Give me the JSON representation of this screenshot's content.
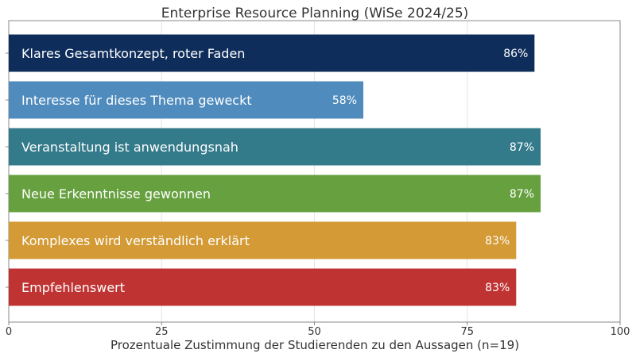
{
  "chart_data": {
    "type": "bar",
    "orientation": "horizontal",
    "title": "Enterprise Resource Planning (WiSe 2024/25)",
    "xlabel": "Prozentuale Zustimmung der Studierenden zu den Aussagen (n=19)",
    "ylabel": "",
    "xlim": [
      0,
      100
    ],
    "xticks": [
      0,
      25,
      50,
      75,
      100
    ],
    "grid": true,
    "categories": [
      "Klares Gesamtkonzept, roter Faden",
      "Interesse für dieses Thema geweckt",
      "Veranstaltung ist anwendungsnah",
      "Neue Erkenntnisse gewonnen",
      "Komplexes wird verständlich erklärt",
      "Empfehlenswert"
    ],
    "values": [
      86,
      58,
      87,
      87,
      83,
      83
    ],
    "value_labels": [
      "86%",
      "58%",
      "87%",
      "87%",
      "83%",
      "83%"
    ],
    "colors": [
      "#0f2d5b",
      "#4f8bbd",
      "#337a8a",
      "#66a03f",
      "#d39a35",
      "#c03333"
    ]
  }
}
